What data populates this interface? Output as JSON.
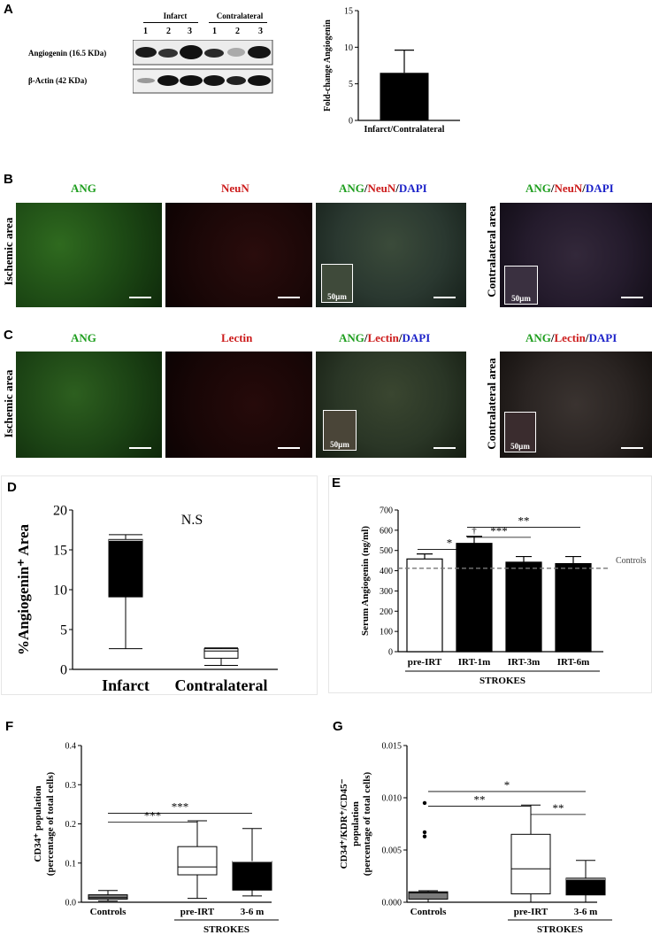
{
  "panels": {
    "A": "A",
    "B": "B",
    "C": "C",
    "D": "D",
    "E": "E",
    "F": "F",
    "G": "G"
  },
  "blot": {
    "group_infarct": "Infarct",
    "group_contralateral": "Contralateral",
    "lanes": [
      "1",
      "2",
      "3",
      "1",
      "2",
      "3"
    ],
    "row1_label": "Angiogenin (16.5 KDa)",
    "row2_label": "β-Actin (42 KDa)"
  },
  "micro": {
    "ang": "ANG",
    "neun": "NeuN",
    "lectin": "Lectin",
    "dapi": "DAPI",
    "slash": "/",
    "ischemic_area": "Ischemic area",
    "contralateral_area": "Contralateral area",
    "scale": "50µm"
  },
  "colors": {
    "ang_green": "#1e9e1e",
    "red_marker": "#cc1b1b",
    "dapi_blue": "#1d23c9"
  },
  "chart_data": [
    {
      "id": "A",
      "type": "bar",
      "categories": [
        "Infarct/Contralateral"
      ],
      "values": [
        6.5
      ],
      "error": [
        3.1
      ],
      "ylabel": "Fold-change Angiogenin",
      "ylim": [
        0,
        15
      ],
      "yticks": [
        "0",
        "5",
        "10",
        "15"
      ]
    },
    {
      "id": "D",
      "type": "boxplot",
      "categories": [
        "Infarct",
        "Contralateral"
      ],
      "boxes": [
        {
          "min": 2.6,
          "q1": 9.1,
          "median": 16.2,
          "q3": 16.3,
          "max": 16.9,
          "fill": "#000000"
        },
        {
          "min": 0.5,
          "q1": 1.4,
          "median": 2.3,
          "q3": 2.6,
          "max": 2.7,
          "fill": "#ffffff"
        }
      ],
      "ylabel": "%Angiogenin⁺ Area",
      "ylim": [
        0,
        20
      ],
      "yticks": [
        "0",
        "5",
        "10",
        "15",
        "20"
      ],
      "annotation": "N.S"
    },
    {
      "id": "E",
      "type": "bar",
      "categories": [
        "pre-IRT",
        "IRT-1m",
        "IRT-3m",
        "IRT-6m"
      ],
      "values": [
        458,
        535,
        442,
        435
      ],
      "error": [
        25,
        35,
        28,
        35
      ],
      "fills": [
        "#ffffff",
        "#000000",
        "#000000",
        "#000000"
      ],
      "ylabel": "Serum Angiogenin (ng/ml)",
      "ylim": [
        0,
        700
      ],
      "yticks": [
        "0",
        "100",
        "200",
        "300",
        "400",
        "500",
        "600",
        "700"
      ],
      "reference_line": {
        "value": 412,
        "label": "Controls"
      },
      "group_label": "STROKES",
      "significance": [
        {
          "from": "pre-IRT",
          "to": "IRT-1m",
          "label": "*"
        },
        {
          "from": "IRT-1m",
          "to": "IRT-3m",
          "label": "***"
        },
        {
          "from": "IRT-1m",
          "to": "IRT-6m",
          "label": "**"
        }
      ],
      "marker": "†"
    },
    {
      "id": "F",
      "type": "boxplot",
      "categories": [
        "Controls",
        "pre-IRT",
        "3-6 m"
      ],
      "boxes": [
        {
          "min": 0.003,
          "q1": 0.008,
          "median": 0.012,
          "q3": 0.019,
          "max": 0.03,
          "fill": "#7a7a7a"
        },
        {
          "min": 0.01,
          "q1": 0.07,
          "median": 0.09,
          "q3": 0.142,
          "max": 0.208,
          "fill": "#ffffff"
        },
        {
          "min": 0.016,
          "q1": 0.031,
          "median": 0.104,
          "q3": 0.104,
          "max": 0.188,
          "fill": "#000000"
        }
      ],
      "ylabel": "CD34⁺ population (percentage of total cells)",
      "ylim": [
        0,
        0.4
      ],
      "yticks": [
        "0.0",
        "0.1",
        "0.2",
        "0.3",
        "0.4"
      ],
      "group_label": "STROKES",
      "significance": [
        {
          "from": "Controls",
          "to": "pre-IRT",
          "label": "***"
        },
        {
          "from": "Controls",
          "to": "3-6 m",
          "label": "***"
        }
      ]
    },
    {
      "id": "G",
      "type": "boxplot",
      "categories": [
        "Controls",
        "pre-IRT",
        "3-6 m"
      ],
      "boxes": [
        {
          "min": 0.0,
          "q1": 0.0003,
          "median": 0.0009,
          "q3": 0.001,
          "max": 0.0011,
          "fill": "#7a7a7a",
          "outliers": [
            0.0063,
            0.0067,
            0.0095
          ]
        },
        {
          "min": 0.0,
          "q1": 0.0008,
          "median": 0.0032,
          "q3": 0.0065,
          "max": 0.0093,
          "fill": "#ffffff"
        },
        {
          "min": 0.0,
          "q1": 0.0007,
          "median": 0.0022,
          "q3": 0.0023,
          "max": 0.004,
          "fill": "#000000"
        }
      ],
      "ylabel": "CD34⁺/KDR⁺/CD45⁻ population (percentage of total cells)",
      "ylim": [
        0,
        0.015
      ],
      "yticks": [
        "0.000",
        "0.005",
        "0.010",
        "0.015"
      ],
      "group_label": "STROKES",
      "significance": [
        {
          "from": "Controls",
          "to": "pre-IRT",
          "label": "**"
        },
        {
          "from": "Controls",
          "to": "3-6 m",
          "label": "*"
        },
        {
          "from": "pre-IRT",
          "to": "3-6 m",
          "label": "**"
        }
      ]
    }
  ]
}
